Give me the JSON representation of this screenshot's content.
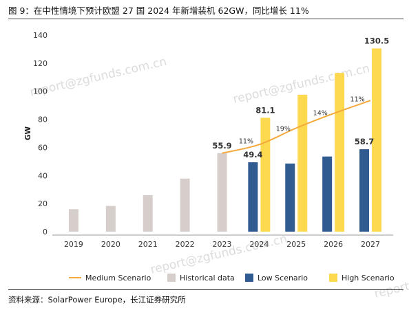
{
  "figure": {
    "title": "图 9：在中性情境下预计欧盟 27 国 2024 年新增装机 62GW，同比增长 11%",
    "source": "资料来源：SolarPower Europe，长江证券研究所"
  },
  "watermark": "report@zgfunds.com.cn",
  "colors": {
    "historical": "#d6ceca",
    "low": "#2f5b91",
    "high": "#fcd94f",
    "medium": "#f4a93c",
    "axis_text": "#333333"
  },
  "chart_data": {
    "type": "bar",
    "ylabel": "GW",
    "ylim": [
      0,
      140
    ],
    "yticks": [
      0,
      20,
      40,
      60,
      80,
      100,
      120,
      140
    ],
    "grid": false,
    "legend_position": "bottom",
    "categories": [
      "2019",
      "2020",
      "2021",
      "2022",
      "2023",
      "2024",
      "2025",
      "2026",
      "2027"
    ],
    "series": [
      {
        "name": "Historical data",
        "type": "bar",
        "color_key": "historical",
        "values": [
          16,
          18.3,
          26,
          37.8,
          55.9,
          null,
          null,
          null,
          null
        ]
      },
      {
        "name": "Low Scenario",
        "type": "bar",
        "color_key": "low",
        "values": [
          null,
          null,
          null,
          null,
          null,
          49.4,
          48.5,
          53.5,
          58.7
        ]
      },
      {
        "name": "High Scenario",
        "type": "bar",
        "color_key": "high",
        "values": [
          null,
          null,
          null,
          null,
          null,
          81.1,
          97.5,
          113,
          130.5
        ]
      },
      {
        "name": "Medium Scenario",
        "type": "line",
        "color_key": "medium",
        "values": [
          null,
          null,
          null,
          null,
          55.9,
          62,
          73.8,
          84.1,
          93.4
        ]
      }
    ],
    "data_labels": [
      {
        "series": "Historical data",
        "category": "2023",
        "text": "55.9"
      },
      {
        "series": "Low Scenario",
        "category": "2024",
        "text": "49.4"
      },
      {
        "series": "High Scenario",
        "category": "2024",
        "text": "81.1"
      },
      {
        "series": "Low Scenario",
        "category": "2027",
        "text": "58.7"
      },
      {
        "series": "High Scenario",
        "category": "2027",
        "text": "130.5"
      }
    ],
    "growth_annotations": [
      {
        "category": "2024",
        "text": "11%"
      },
      {
        "category": "2025",
        "text": "19%"
      },
      {
        "category": "2026",
        "text": "14%"
      },
      {
        "category": "2027",
        "text": "11%"
      }
    ],
    "legend": [
      {
        "name": "Medium Scenario",
        "marker": "line",
        "color_key": "medium"
      },
      {
        "name": "Historical data",
        "marker": "square",
        "color_key": "historical"
      },
      {
        "name": "Low Scenario",
        "marker": "square",
        "color_key": "low"
      },
      {
        "name": "High Scenario",
        "marker": "square",
        "color_key": "high"
      }
    ]
  }
}
